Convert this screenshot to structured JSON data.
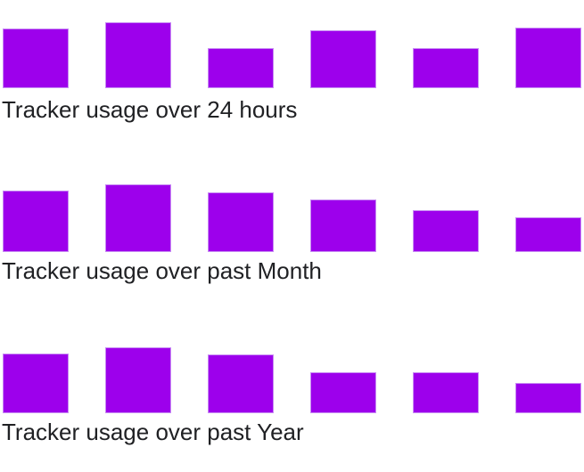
{
  "colors": {
    "bar_fill": "#9d00ec",
    "bar_edge": "#c88df3",
    "text": "#202124",
    "background": "#ffffff"
  },
  "chart_data": [
    {
      "type": "bar",
      "title": "Tracker usage over 24 hours",
      "values": [
        67,
        74,
        45,
        65,
        45,
        68
      ],
      "units": "relative-height-px",
      "xlabel": "",
      "ylabel": "",
      "ylim": [
        0,
        80
      ],
      "grid": false,
      "legend": false,
      "axes_visible": false
    },
    {
      "type": "bar",
      "title": "Tracker usage over past Month",
      "values": [
        69,
        76,
        67,
        59,
        47,
        39
      ],
      "units": "relative-height-px",
      "xlabel": "",
      "ylabel": "",
      "ylim": [
        0,
        80
      ],
      "grid": false,
      "legend": false,
      "axes_visible": false
    },
    {
      "type": "bar",
      "title": "Tracker usage over past Year",
      "values": [
        67,
        74,
        66,
        46,
        46,
        34
      ],
      "units": "relative-height-px",
      "xlabel": "",
      "ylabel": "",
      "ylim": [
        0,
        80
      ],
      "grid": false,
      "legend": false,
      "axes_visible": false
    }
  ]
}
